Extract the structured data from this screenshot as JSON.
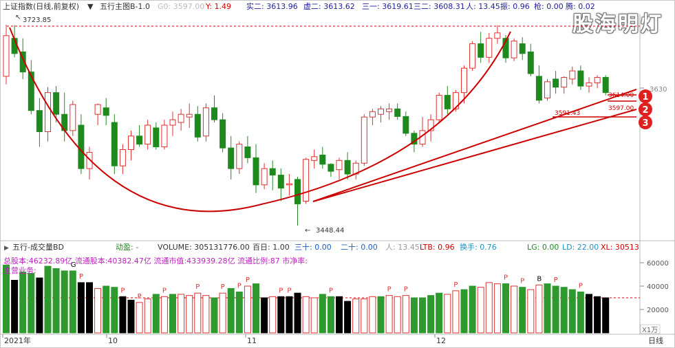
{
  "header": {
    "index_name": "上证指数(日线,前复权)",
    "indicator": "五行主图B-1.0",
    "g0": "G0: 3597.00",
    "y": "Y: 1.49",
    "shi_er": "实二: 3613.96",
    "xu_er": "虚二: 3613.62",
    "san_yi": "三一: 3619.61",
    "san_er": "三二: 3608.31",
    "ren": "人: 13.45",
    "zhen": "振: 0.96",
    "qiang": "枪: 0.00",
    "teng": "腾: 0.02"
  },
  "watermark": "股海明灯",
  "price_chart": {
    "type": "candlestick",
    "right_tick": "3630",
    "annotations": {
      "high_label": "3723.85",
      "low_label": "3448.44",
      "level1": "3614.00",
      "level2": "3597.00",
      "level3": "3591.43"
    },
    "circle_labels": [
      "1",
      "2",
      "3"
    ],
    "colors": {
      "up": "#e03030",
      "down": "#1e8a1e",
      "neutral": "#000000",
      "curve": "#cc0000"
    },
    "candles": [
      {
        "o": 3630,
        "h": 3725,
        "l": 3615,
        "c": 3705
      },
      {
        "o": 3700,
        "h": 3724,
        "l": 3665,
        "c": 3672
      },
      {
        "o": 3675,
        "h": 3700,
        "l": 3625,
        "c": 3638
      },
      {
        "o": 3638,
        "h": 3660,
        "l": 3560,
        "c": 3567
      },
      {
        "o": 3567,
        "h": 3590,
        "l": 3500,
        "c": 3528
      },
      {
        "o": 3528,
        "h": 3610,
        "l": 3510,
        "c": 3600
      },
      {
        "o": 3600,
        "h": 3612,
        "l": 3545,
        "c": 3560
      },
      {
        "o": 3560,
        "h": 3600,
        "l": 3510,
        "c": 3530
      },
      {
        "o": 3530,
        "h": 3585,
        "l": 3520,
        "c": 3578
      },
      {
        "o": 3540,
        "h": 3560,
        "l": 3450,
        "c": 3460
      },
      {
        "o": 3460,
        "h": 3500,
        "l": 3440,
        "c": 3490
      },
      {
        "o": 3560,
        "h": 3580,
        "l": 3540,
        "c": 3578
      },
      {
        "o": 3572,
        "h": 3590,
        "l": 3540,
        "c": 3558
      },
      {
        "o": 3545,
        "h": 3560,
        "l": 3450,
        "c": 3465
      },
      {
        "o": 3465,
        "h": 3505,
        "l": 3450,
        "c": 3495
      },
      {
        "o": 3495,
        "h": 3530,
        "l": 3475,
        "c": 3520
      },
      {
        "o": 3520,
        "h": 3540,
        "l": 3500,
        "c": 3505
      },
      {
        "o": 3505,
        "h": 3550,
        "l": 3495,
        "c": 3540
      },
      {
        "o": 3535,
        "h": 3545,
        "l": 3495,
        "c": 3500
      },
      {
        "o": 3500,
        "h": 3550,
        "l": 3495,
        "c": 3540
      },
      {
        "o": 3540,
        "h": 3565,
        "l": 3520,
        "c": 3550
      },
      {
        "o": 3545,
        "h": 3570,
        "l": 3530,
        "c": 3560
      },
      {
        "o": 3555,
        "h": 3580,
        "l": 3535,
        "c": 3560
      },
      {
        "o": 3560,
        "h": 3575,
        "l": 3510,
        "c": 3518
      },
      {
        "o": 3520,
        "h": 3580,
        "l": 3510,
        "c": 3572
      },
      {
        "o": 3572,
        "h": 3595,
        "l": 3545,
        "c": 3550
      },
      {
        "o": 3550,
        "h": 3562,
        "l": 3490,
        "c": 3498
      },
      {
        "o": 3498,
        "h": 3520,
        "l": 3440,
        "c": 3460
      },
      {
        "o": 3460,
        "h": 3510,
        "l": 3450,
        "c": 3505
      },
      {
        "o": 3500,
        "h": 3520,
        "l": 3470,
        "c": 3480
      },
      {
        "o": 3480,
        "h": 3505,
        "l": 3415,
        "c": 3430
      },
      {
        "o": 3430,
        "h": 3470,
        "l": 3422,
        "c": 3460
      },
      {
        "o": 3460,
        "h": 3475,
        "l": 3420,
        "c": 3448
      },
      {
        "o": 3448,
        "h": 3460,
        "l": 3400,
        "c": 3424
      },
      {
        "o": 3430,
        "h": 3450,
        "l": 3410,
        "c": 3432
      },
      {
        "o": 3440,
        "h": 3445,
        "l": 3355,
        "c": 3395
      },
      {
        "o": 3400,
        "h": 3480,
        "l": 3395,
        "c": 3477
      },
      {
        "o": 3475,
        "h": 3495,
        "l": 3460,
        "c": 3482
      },
      {
        "o": 3485,
        "h": 3500,
        "l": 3460,
        "c": 3468
      },
      {
        "o": 3468,
        "h": 3470,
        "l": 3445,
        "c": 3455
      },
      {
        "o": 3458,
        "h": 3480,
        "l": 3440,
        "c": 3475
      },
      {
        "o": 3475,
        "h": 3490,
        "l": 3440,
        "c": 3450
      },
      {
        "o": 3450,
        "h": 3475,
        "l": 3440,
        "c": 3470
      },
      {
        "o": 3470,
        "h": 3560,
        "l": 3465,
        "c": 3555
      },
      {
        "o": 3555,
        "h": 3570,
        "l": 3540,
        "c": 3565
      },
      {
        "o": 3560,
        "h": 3575,
        "l": 3545,
        "c": 3570
      },
      {
        "o": 3565,
        "h": 3580,
        "l": 3550,
        "c": 3570
      },
      {
        "o": 3570,
        "h": 3580,
        "l": 3550,
        "c": 3556
      },
      {
        "o": 3556,
        "h": 3565,
        "l": 3520,
        "c": 3525
      },
      {
        "o": 3525,
        "h": 3530,
        "l": 3490,
        "c": 3505
      },
      {
        "o": 3505,
        "h": 3555,
        "l": 3500,
        "c": 3530
      },
      {
        "o": 3530,
        "h": 3560,
        "l": 3510,
        "c": 3550
      },
      {
        "o": 3550,
        "h": 3600,
        "l": 3545,
        "c": 3595
      },
      {
        "o": 3595,
        "h": 3612,
        "l": 3560,
        "c": 3570
      },
      {
        "o": 3570,
        "h": 3605,
        "l": 3565,
        "c": 3600
      },
      {
        "o": 3600,
        "h": 3650,
        "l": 3580,
        "c": 3645
      },
      {
        "o": 3645,
        "h": 3695,
        "l": 3640,
        "c": 3690
      },
      {
        "o": 3690,
        "h": 3712,
        "l": 3655,
        "c": 3665
      },
      {
        "o": 3665,
        "h": 3710,
        "l": 3655,
        "c": 3700
      },
      {
        "o": 3700,
        "h": 3724,
        "l": 3690,
        "c": 3710
      },
      {
        "o": 3700,
        "h": 3706,
        "l": 3655,
        "c": 3664
      },
      {
        "o": 3664,
        "h": 3700,
        "l": 3658,
        "c": 3695
      },
      {
        "o": 3690,
        "h": 3702,
        "l": 3660,
        "c": 3672
      },
      {
        "o": 3675,
        "h": 3690,
        "l": 3630,
        "c": 3635
      },
      {
        "o": 3630,
        "h": 3650,
        "l": 3580,
        "c": 3586
      },
      {
        "o": 3590,
        "h": 3625,
        "l": 3585,
        "c": 3620
      },
      {
        "o": 3625,
        "h": 3640,
        "l": 3598,
        "c": 3610
      },
      {
        "o": 3610,
        "h": 3630,
        "l": 3598,
        "c": 3628
      },
      {
        "o": 3625,
        "h": 3648,
        "l": 3615,
        "c": 3640
      },
      {
        "o": 3640,
        "h": 3650,
        "l": 3605,
        "c": 3612
      },
      {
        "o": 3612,
        "h": 3628,
        "l": 3600,
        "c": 3618
      },
      {
        "o": 3618,
        "h": 3632,
        "l": 3608,
        "c": 3628
      },
      {
        "o": 3628,
        "h": 3632,
        "l": 3595,
        "c": 3600
      }
    ]
  },
  "volume_panel": {
    "header": {
      "name": "五行-成交量BD",
      "dongying": "动盈: -",
      "volume": "VOLUME: 305131776.00",
      "bairi": "百日: 1.00",
      "sanshi": "三十: 0.00",
      "ershi": "二十: 0.00",
      "ren": "人: 13.45",
      "ltb": "LTB: 0.96",
      "huanshou": "换手: 0.76",
      "lg": "LG: 0.00",
      "ld": "LD: 22.00",
      "xl": "XL: 30513"
    },
    "info_line": "总股本:46232.89亿  流通股本:40382.47亿  流通市值:433939.28亿  流通比例:87  市净率:",
    "info_line2": "主营业务:",
    "ticks": [
      "60000",
      "40000",
      "20000"
    ],
    "unit": "X1万",
    "values": [
      58000,
      45000,
      52000,
      51000,
      47000,
      57000,
      55000,
      53000,
      53000,
      43000,
      43000,
      38000,
      40000,
      39000,
      31000,
      28000,
      26000,
      29000,
      33000,
      31000,
      33000,
      33000,
      32000,
      34000,
      32000,
      30000,
      34000,
      38000,
      35000,
      40000,
      42000,
      30000,
      31000,
      31000,
      31000,
      34000,
      31000,
      30000,
      33000,
      31000,
      31000,
      27000,
      29000,
      29000,
      31000,
      31000,
      32000,
      31000,
      32000,
      30000,
      30000,
      32000,
      34000,
      33000,
      36000,
      37000,
      40000,
      39000,
      43000,
      42000,
      42000,
      40000,
      39000,
      37000,
      41000,
      42000,
      40000,
      39000,
      37000,
      35000,
      33000,
      31000,
      30000
    ],
    "kinds": [
      "D",
      "N",
      "D",
      "D",
      "N",
      "D",
      "D",
      "D",
      "D",
      "N",
      "N",
      "U",
      "D",
      "D",
      "N",
      "N",
      "U",
      "U",
      "D",
      "U",
      "D",
      "U",
      "U",
      "U",
      "U",
      "D",
      "U",
      "D",
      "D",
      "U",
      "D",
      "N",
      "U",
      "N",
      "N",
      "N",
      "U",
      "U",
      "D",
      "D",
      "N",
      "N",
      "U",
      "U",
      "U",
      "D",
      "U",
      "U",
      "U",
      "D",
      "D",
      "D",
      "D",
      "U",
      "U",
      "D",
      "D",
      "U",
      "U",
      "U",
      "D",
      "U",
      "D",
      "U",
      "U",
      "D",
      "D",
      "D",
      "D",
      "D",
      "N",
      "N",
      "N"
    ],
    "letters": [
      {
        "i": 8,
        "t": "G"
      },
      {
        "i": 9,
        "t": "P"
      },
      {
        "i": 14,
        "t": "P"
      },
      {
        "i": 16,
        "t": "P"
      },
      {
        "i": 19,
        "t": "P"
      },
      {
        "i": 23,
        "t": "P"
      },
      {
        "i": 26,
        "t": "P"
      },
      {
        "i": 28,
        "t": "P"
      },
      {
        "i": 29,
        "t": "P"
      },
      {
        "i": 33,
        "t": "P"
      },
      {
        "i": 34,
        "t": "P"
      },
      {
        "i": 39,
        "t": "P"
      },
      {
        "i": 46,
        "t": "P"
      },
      {
        "i": 48,
        "t": "P"
      },
      {
        "i": 54,
        "t": "P"
      },
      {
        "i": 60,
        "t": "P"
      },
      {
        "i": 62,
        "t": "P"
      },
      {
        "i": 64,
        "t": "B"
      },
      {
        "i": 66,
        "t": "P"
      },
      {
        "i": 69,
        "t": "P"
      }
    ]
  },
  "x_axis": {
    "labels": [
      "2021年",
      "10",
      "11",
      "12"
    ],
    "period": "日线"
  }
}
